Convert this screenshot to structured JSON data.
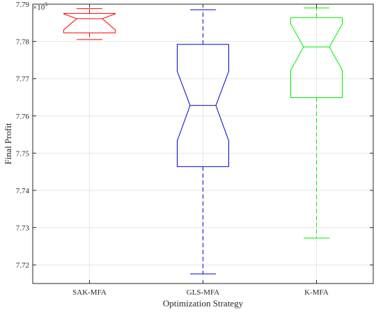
{
  "chart_data": {
    "type": "boxplot",
    "notched": true,
    "xlabel": "Optimization Strategy",
    "ylabel": "Final Profit",
    "y_exponent_label": "×10",
    "y_exponent_power": "5",
    "ylim": [
      7.715,
      7.79
    ],
    "yticks": [
      7.72,
      7.73,
      7.74,
      7.75,
      7.76,
      7.77,
      7.78,
      7.79
    ],
    "ytick_labels": [
      "7.72",
      "7.73",
      "7.74",
      "7.75",
      "7.76",
      "7.77",
      "7.78",
      "7.79"
    ],
    "grid": true,
    "categories": [
      "SAK-MFA",
      "GLS-MFA",
      "K-MFA"
    ],
    "boxes": [
      {
        "label": "SAK-MFA",
        "color": "#ff0000",
        "whisker_low": 7.7805,
        "q1": 7.7823,
        "notch_low": 7.7831,
        "median": 7.7861,
        "notch_high": 7.7874,
        "q3": 7.7875,
        "whisker_high": 7.7888
      },
      {
        "label": "GLS-MFA",
        "color": "#0000cc",
        "whisker_low": 7.7176,
        "q1": 7.7464,
        "notch_low": 7.7533,
        "median": 7.7628,
        "notch_high": 7.772,
        "q3": 7.7792,
        "whisker_high": 7.7885
      },
      {
        "label": "K-MFA",
        "color": "#00ee00",
        "whisker_low": 7.7272,
        "q1": 7.7649,
        "notch_low": 7.7723,
        "median": 7.7785,
        "notch_high": 7.7847,
        "q3": 7.7864,
        "whisker_high": 7.789
      }
    ]
  }
}
